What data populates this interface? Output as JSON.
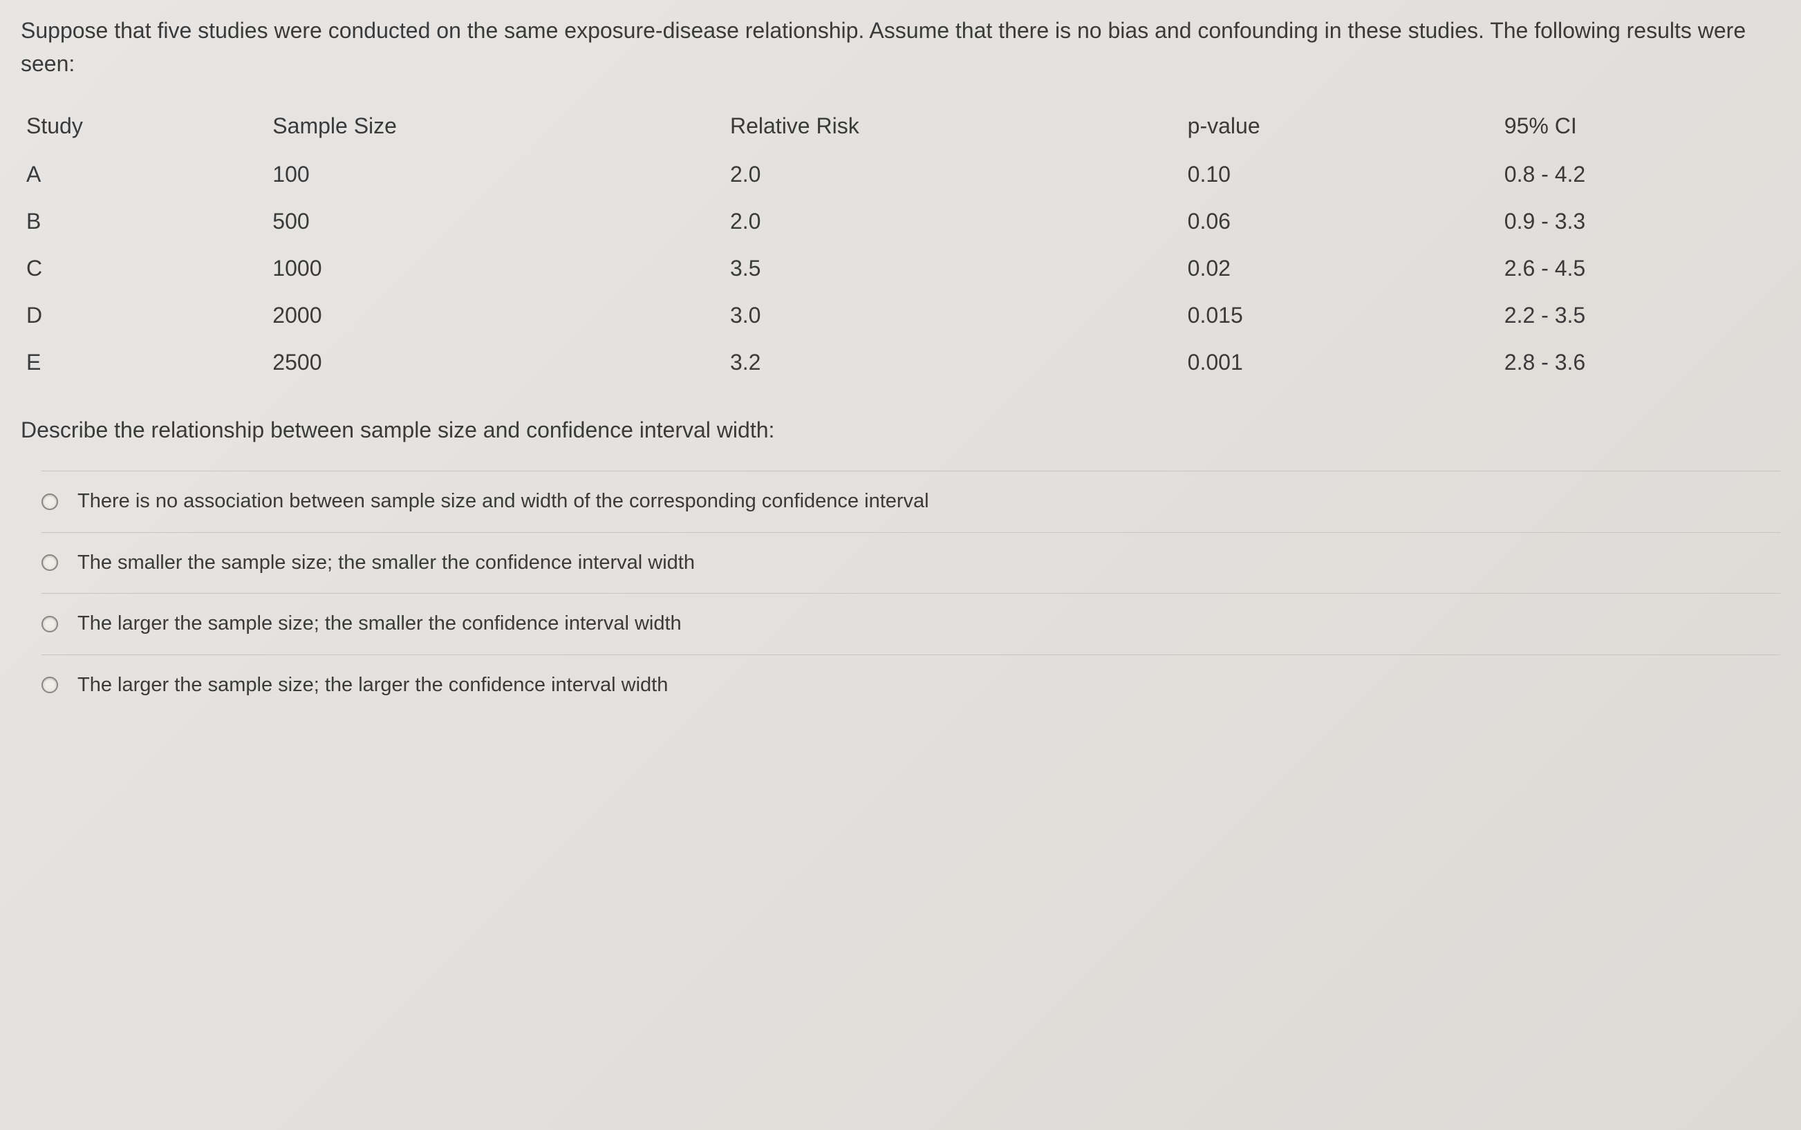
{
  "intro": "Suppose that five studies were conducted on the same exposure-disease relationship. Assume that there is no bias and confounding in these studies. The following results were seen:",
  "table": {
    "headers": {
      "study": "Study",
      "sample_size": "Sample Size",
      "relative_risk": "Relative Risk",
      "p_value": "p-value",
      "ci": "95% CI"
    },
    "rows": [
      {
        "study": "A",
        "sample_size": "100",
        "relative_risk": "2.0",
        "p_value": "0.10",
        "ci": "0.8 - 4.2"
      },
      {
        "study": "B",
        "sample_size": "500",
        "relative_risk": "2.0",
        "p_value": "0.06",
        "ci": "0.9 - 3.3"
      },
      {
        "study": "C",
        "sample_size": "1000",
        "relative_risk": "3.5",
        "p_value": "0.02",
        "ci": "2.6 - 4.5"
      },
      {
        "study": "D",
        "sample_size": "2000",
        "relative_risk": "3.0",
        "p_value": "0.015",
        "ci": "2.2 - 3.5"
      },
      {
        "study": "E",
        "sample_size": "2500",
        "relative_risk": "3.2",
        "p_value": "0.001",
        "ci": "2.8 - 3.6"
      }
    ]
  },
  "question": "Describe the relationship between sample size and confidence interval width:",
  "options": [
    "There is no association between sample size and width of the corresponding confidence interval",
    "The smaller the sample size; the smaller the confidence interval width",
    "The larger the sample size; the smaller the confidence interval width",
    "The larger the sample size; the larger the confidence interval width"
  ],
  "styling": {
    "background_gradient_start": "#e8e6e4",
    "background_gradient_end": "#ddd9d5",
    "text_color": "#3a3a3a",
    "border_color": "#c8c4c0",
    "radio_border_color": "#8a8682",
    "body_fontsize": 32,
    "option_fontsize": 29
  }
}
